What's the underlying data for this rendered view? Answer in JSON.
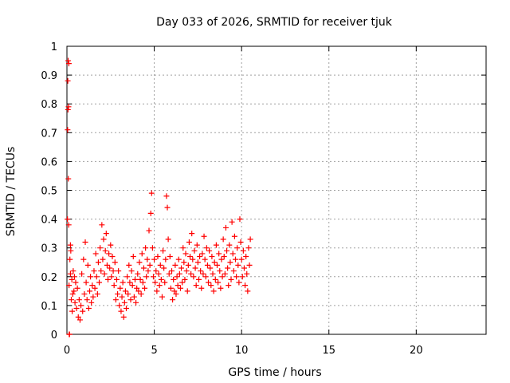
{
  "chart_data": {
    "type": "scatter",
    "title": "Day 033 of 2026, SRMTID for receiver tjuk",
    "xlabel": "GPS time / hours",
    "ylabel": "SRMTID / TECUs",
    "xlim": [
      0,
      24
    ],
    "ylim": [
      0,
      1
    ],
    "xticks": [
      0,
      5,
      10,
      15,
      20
    ],
    "xtick_labels": [
      "0",
      "5",
      "10",
      "15",
      "20"
    ],
    "yticks": [
      0,
      0.1,
      0.2,
      0.3,
      0.4,
      0.5,
      0.6,
      0.7,
      0.8,
      0.9,
      1
    ],
    "ytick_labels": [
      "0",
      "0.1",
      "0.2",
      "0.3",
      "0.4",
      "0.5",
      "0.6",
      "0.7",
      "0.8",
      "0.9",
      "1"
    ],
    "grid": true,
    "marker": "+",
    "color": "#ff0000",
    "series": [
      {
        "name": "SRMTID",
        "x": [
          0.03,
          0.04,
          0.05,
          0.06,
          0.07,
          0.08,
          0.09,
          0.1,
          0.11,
          0.12,
          0.13,
          0.15,
          0.17,
          0.2,
          0.2,
          0.22,
          0.25,
          0.28,
          0.3,
          0.33,
          0.36,
          0.4,
          0.43,
          0.46,
          0.5,
          0.55,
          0.6,
          0.65,
          0.7,
          0.75,
          0.8,
          0.85,
          0.9,
          0.95,
          1.0,
          1.05,
          1.1,
          1.15,
          1.2,
          1.25,
          1.3,
          1.35,
          1.4,
          1.45,
          1.5,
          1.55,
          1.6,
          1.65,
          1.7,
          1.75,
          1.8,
          1.85,
          1.9,
          1.95,
          2.0,
          2.05,
          2.1,
          2.15,
          2.2,
          2.25,
          2.3,
          2.35,
          2.4,
          2.45,
          2.5,
          2.55,
          2.6,
          2.65,
          2.7,
          2.75,
          2.8,
          2.85,
          2.9,
          2.95,
          3.0,
          3.05,
          3.1,
          3.15,
          3.2,
          3.25,
          3.3,
          3.35,
          3.4,
          3.45,
          3.5,
          3.55,
          3.6,
          3.65,
          3.7,
          3.75,
          3.8,
          3.85,
          3.9,
          3.95,
          4.0,
          4.05,
          4.1,
          4.15,
          4.2,
          4.25,
          4.3,
          4.35,
          4.4,
          4.45,
          4.5,
          4.55,
          4.6,
          4.65,
          4.7,
          4.75,
          4.8,
          4.85,
          4.9,
          4.95,
          5.0,
          5.05,
          5.1,
          5.15,
          5.2,
          5.25,
          5.3,
          5.35,
          5.4,
          5.45,
          5.5,
          5.55,
          5.6,
          5.65,
          5.7,
          5.75,
          5.8,
          5.85,
          5.9,
          5.95,
          6.0,
          6.05,
          6.1,
          6.15,
          6.2,
          6.25,
          6.3,
          6.35,
          6.4,
          6.45,
          6.5,
          6.55,
          6.6,
          6.65,
          6.7,
          6.75,
          6.8,
          6.85,
          6.9,
          6.95,
          7.0,
          7.05,
          7.1,
          7.15,
          7.2,
          7.25,
          7.3,
          7.35,
          7.4,
          7.45,
          7.5,
          7.55,
          7.6,
          7.65,
          7.7,
          7.75,
          7.8,
          7.85,
          7.9,
          7.95,
          8.0,
          8.05,
          8.1,
          8.15,
          8.2,
          8.25,
          8.3,
          8.35,
          8.4,
          8.45,
          8.5,
          8.55,
          8.6,
          8.65,
          8.7,
          8.75,
          8.8,
          8.85,
          8.9,
          8.95,
          9.0,
          9.05,
          9.1,
          9.15,
          9.2,
          9.25,
          9.3,
          9.35,
          9.4,
          9.45,
          9.5,
          9.55,
          9.6,
          9.65,
          9.7,
          9.75,
          9.8,
          9.85,
          9.9,
          9.95,
          10.0,
          10.05,
          10.1,
          10.15,
          10.2,
          10.25,
          10.3,
          10.35,
          10.4,
          10.45,
          10.5
        ],
        "y": [
          0.4,
          0.71,
          0.88,
          0.78,
          0.95,
          0.54,
          0.79,
          0.38,
          0.94,
          0.17,
          0.0,
          0.0,
          0.26,
          0.31,
          0.21,
          0.29,
          0.12,
          0.19,
          0.08,
          0.14,
          0.22,
          0.15,
          0.2,
          0.11,
          0.18,
          0.09,
          0.16,
          0.06,
          0.12,
          0.05,
          0.1,
          0.21,
          0.08,
          0.26,
          0.14,
          0.32,
          0.18,
          0.12,
          0.24,
          0.09,
          0.15,
          0.2,
          0.11,
          0.17,
          0.13,
          0.22,
          0.16,
          0.28,
          0.2,
          0.14,
          0.25,
          0.18,
          0.3,
          0.22,
          0.38,
          0.26,
          0.33,
          0.21,
          0.29,
          0.35,
          0.24,
          0.19,
          0.28,
          0.23,
          0.31,
          0.2,
          0.27,
          0.22,
          0.17,
          0.25,
          0.12,
          0.19,
          0.14,
          0.22,
          0.1,
          0.16,
          0.08,
          0.13,
          0.18,
          0.06,
          0.11,
          0.15,
          0.09,
          0.2,
          0.14,
          0.24,
          0.18,
          0.12,
          0.22,
          0.17,
          0.27,
          0.13,
          0.19,
          0.11,
          0.16,
          0.21,
          0.15,
          0.25,
          0.19,
          0.14,
          0.28,
          0.18,
          0.23,
          0.16,
          0.3,
          0.2,
          0.26,
          0.22,
          0.36,
          0.24,
          0.42,
          0.49,
          0.3,
          0.2,
          0.26,
          0.18,
          0.22,
          0.15,
          0.27,
          0.21,
          0.17,
          0.24,
          0.19,
          0.13,
          0.29,
          0.23,
          0.18,
          0.26,
          0.48,
          0.44,
          0.33,
          0.21,
          0.27,
          0.16,
          0.22,
          0.12,
          0.19,
          0.15,
          0.24,
          0.14,
          0.2,
          0.17,
          0.26,
          0.21,
          0.16,
          0.23,
          0.18,
          0.3,
          0.25,
          0.19,
          0.28,
          0.22,
          0.15,
          0.24,
          0.32,
          0.27,
          0.21,
          0.35,
          0.26,
          0.2,
          0.29,
          0.23,
          0.17,
          0.31,
          0.25,
          0.19,
          0.27,
          0.22,
          0.16,
          0.28,
          0.21,
          0.34,
          0.26,
          0.2,
          0.3,
          0.24,
          0.18,
          0.29,
          0.23,
          0.17,
          0.27,
          0.21,
          0.15,
          0.25,
          0.19,
          0.31,
          0.24,
          0.18,
          0.28,
          0.22,
          0.16,
          0.26,
          0.2,
          0.33,
          0.27,
          0.21,
          0.37,
          0.29,
          0.23,
          0.17,
          0.31,
          0.25,
          0.19,
          0.39,
          0.28,
          0.22,
          0.34,
          0.26,
          0.2,
          0.3,
          0.24,
          0.18,
          0.4,
          0.32,
          0.26,
          0.2,
          0.29,
          0.23,
          0.17,
          0.27,
          0.21,
          0.15,
          0.3,
          0.24,
          0.33
        ]
      }
    ]
  }
}
